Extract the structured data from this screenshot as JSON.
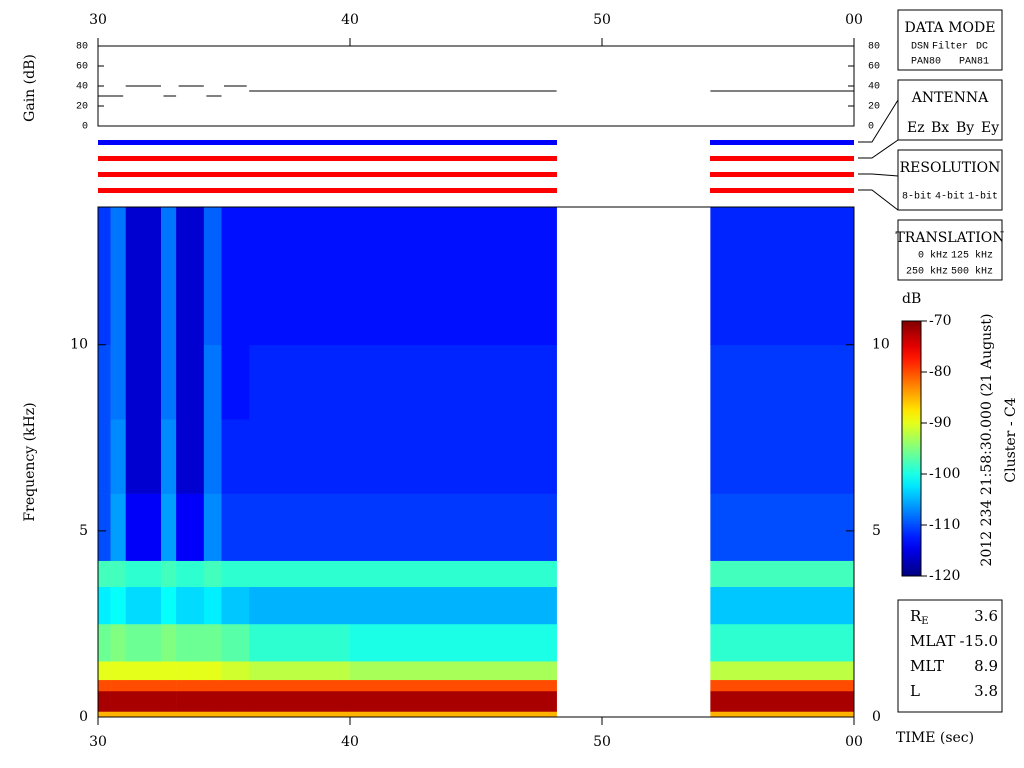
{
  "chart_data": [
    {
      "type": "line",
      "ylabel": "Gain (dB)",
      "color": "#000000",
      "xlim": [
        30,
        60
      ],
      "xticks": [
        30,
        40,
        50,
        {
          "value": 60,
          "label": "00"
        }
      ],
      "ylim": [
        0,
        80
      ],
      "yticks": [
        0,
        20,
        40,
        60,
        80
      ],
      "x": [
        30,
        31,
        31.05,
        31.1,
        32.5,
        32.55,
        32.6,
        33.1,
        33.15,
        33.2,
        34.2,
        34.25,
        34.3,
        34.9,
        34.95,
        35,
        35.9,
        35.95,
        36,
        48.2,
        51,
        54.3,
        60
      ],
      "values": [
        30,
        30,
        null,
        40,
        40,
        null,
        30,
        30,
        null,
        40,
        40,
        null,
        30,
        30,
        null,
        40,
        40,
        null,
        35,
        35,
        null,
        35,
        35
      ]
    },
    {
      "type": "heatmap",
      "ylabel": "Frequency (kHz)",
      "xlabel": "TIME (sec)",
      "colormap": "jet",
      "xlim": [
        30,
        60
      ],
      "xticks": [
        30,
        40,
        50,
        {
          "value": 60,
          "label": "00"
        }
      ],
      "ylim": [
        0,
        13.7
      ],
      "yticks": [
        0,
        5,
        10
      ],
      "x_edges": [
        30,
        30.5,
        31.1,
        32.5,
        33.1,
        34.2,
        34.9,
        36,
        40,
        48.2,
        54.3,
        60
      ],
      "y_edges": [
        0,
        0.15,
        0.7,
        1.0,
        1.5,
        2.5,
        3.5,
        4.2,
        6,
        8,
        10,
        13.7
      ],
      "z": [
        [
          -85,
          -85,
          -85,
          -85,
          -85,
          -85,
          -85,
          -85,
          -85,
          null,
          -85
        ],
        [
          -72,
          -72,
          -72,
          -72,
          -72,
          -72,
          -72,
          -72,
          -72,
          null,
          -72
        ],
        [
          -80,
          -80,
          -80,
          -80,
          -80,
          -80,
          -80,
          -80,
          -80,
          null,
          -80
        ],
        [
          -90,
          -90,
          -90,
          -90,
          -90,
          -90,
          -91,
          -92,
          -93,
          null,
          -92
        ],
        [
          -96,
          -95,
          -96,
          -95,
          -96,
          -96,
          -97,
          -99,
          -100,
          null,
          -99
        ],
        [
          -102,
          -101,
          -103,
          -101,
          -103,
          -102,
          -104,
          -105,
          -105,
          null,
          -104
        ],
        [
          -98,
          -98,
          -99,
          -98,
          -99,
          -98,
          -99,
          -99,
          -99,
          null,
          -98
        ],
        [
          -110,
          -106,
          -114,
          -106,
          -114,
          -107,
          -111,
          -111,
          -111,
          null,
          -110
        ],
        [
          -110,
          -107,
          -116,
          -107,
          -116,
          -108,
          -112,
          -112,
          -112,
          null,
          -111
        ],
        [
          -110,
          -108,
          -116,
          -108,
          -116,
          -108,
          -113,
          -112,
          -112,
          null,
          -111
        ],
        [
          -111,
          -108,
          -116,
          -108,
          -116,
          -109,
          -113,
          -113,
          -113,
          null,
          -112
        ]
      ],
      "colorbar": {
        "label": "dB",
        "zlim": [
          -120,
          -70
        ],
        "zticks": [
          -70,
          -80,
          -90,
          -100,
          -110,
          -120
        ]
      }
    }
  ],
  "caption": [
    "2012 234 21:58:30.000 (21 August)",
    "Cluster - C4"
  ],
  "side_panel": {
    "data_mode": {
      "title": "DATA MODE",
      "items": [
        {
          "text": "DSN",
          "color": "#ff0000"
        },
        {
          "text": "Filter",
          "color": "#00c000"
        },
        {
          "text": "DC",
          "color": "#0000ff"
        },
        {
          "text": "PAN80",
          "color": "#000000"
        },
        {
          "text": "PAN81",
          "color": "#00c8c8"
        }
      ]
    },
    "antenna": {
      "title": "ANTENNA",
      "items": [
        {
          "text": "Ez",
          "color": "#ff0000"
        },
        {
          "text": "Bx",
          "color": "#00c000"
        },
        {
          "text": "By",
          "color": "#0000ff"
        },
        {
          "text": "Ey",
          "color": "#000000"
        }
      ]
    },
    "resolution": {
      "title": "RESOLUTION",
      "items": [
        {
          "text": "8-bit",
          "color": "#ff0000"
        },
        {
          "text": "4-bit",
          "color": "#00c000"
        },
        {
          "text": "1-bit",
          "color": "#0000ff"
        }
      ]
    },
    "translation": {
      "title": "TRANSLATION",
      "items": [
        {
          "text": "0 kHz",
          "color": "#ff0000"
        },
        {
          "text": "125 kHz",
          "color": "#00c000"
        },
        {
          "text": "250 kHz",
          "color": "#0000ff"
        },
        {
          "text": "500 kHz",
          "color": "#000000"
        }
      ]
    },
    "info": [
      {
        "label": "R",
        "sub": "E",
        "value": "3.6"
      },
      {
        "label": "MLAT",
        "value": "-15.0"
      },
      {
        "label": "MLT",
        "value": "8.9"
      },
      {
        "label": "L",
        "value": "3.8"
      }
    ]
  }
}
